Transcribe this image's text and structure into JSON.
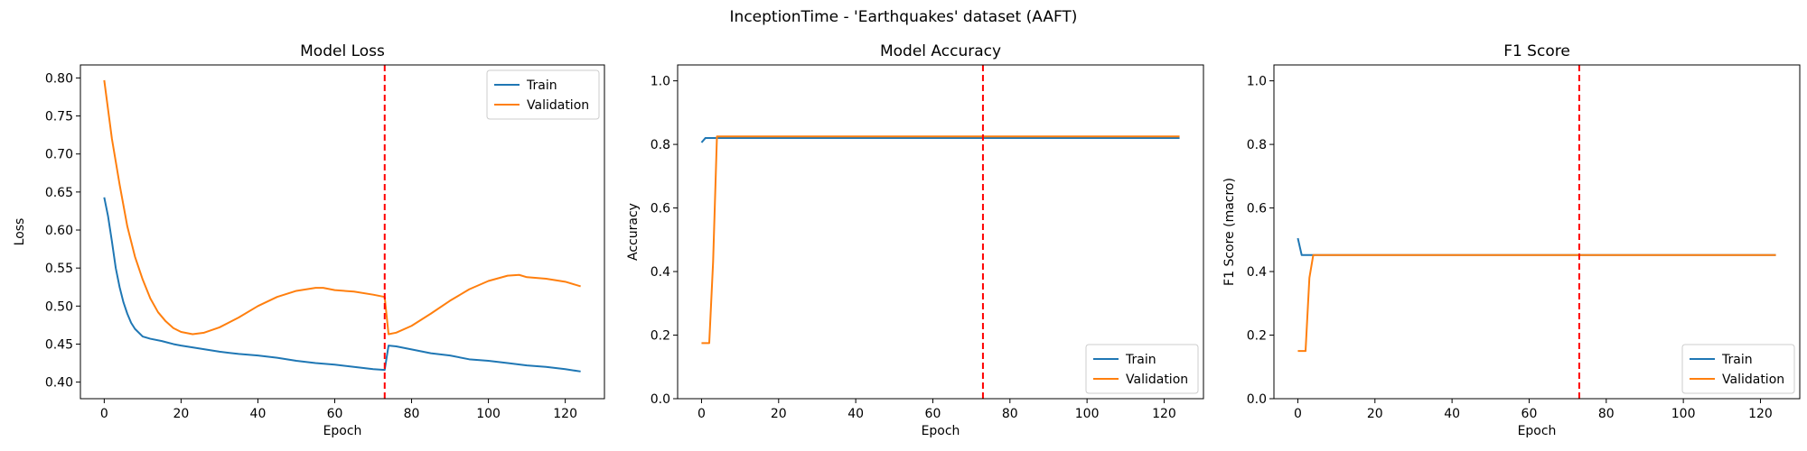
{
  "figure": {
    "suptitle": "InceptionTime - 'Earthquakes' dataset (AAFT)",
    "colors": {
      "train": "#1f77b4",
      "validation": "#ff7f0e",
      "marker": "#ff0000"
    }
  },
  "chart_data": [
    {
      "type": "line",
      "title": "Model Loss",
      "xlabel": "Epoch",
      "ylabel": "Loss",
      "xlim": [
        -6.2,
        130.2
      ],
      "ylim": [
        0.3782,
        0.8171
      ],
      "xticks": [
        0,
        20,
        40,
        60,
        80,
        100,
        120
      ],
      "yticks": [
        0.4,
        0.45,
        0.5,
        0.55,
        0.6,
        0.65,
        0.7,
        0.75,
        0.8
      ],
      "ytick_format": "2dp",
      "vline_x": 73,
      "legend": "top-right",
      "grid": false,
      "series": [
        {
          "name": "Train",
          "x": [
            0,
            1,
            2,
            3,
            4,
            5,
            6,
            7,
            8,
            10,
            12,
            15,
            18,
            20,
            25,
            30,
            35,
            40,
            45,
            50,
            55,
            60,
            65,
            70,
            73,
            74,
            76,
            80,
            85,
            90,
            95,
            100,
            105,
            110,
            115,
            120,
            124
          ],
          "y": [
            0.643,
            0.618,
            0.585,
            0.55,
            0.525,
            0.505,
            0.49,
            0.478,
            0.47,
            0.46,
            0.457,
            0.454,
            0.45,
            0.448,
            0.444,
            0.44,
            0.437,
            0.435,
            0.432,
            0.428,
            0.425,
            0.423,
            0.42,
            0.417,
            0.416,
            0.448,
            0.447,
            0.443,
            0.438,
            0.435,
            0.43,
            0.428,
            0.425,
            0.422,
            0.42,
            0.417,
            0.414
          ]
        },
        {
          "name": "Validation",
          "x": [
            0,
            2,
            4,
            6,
            8,
            10,
            12,
            14,
            16,
            18,
            20,
            23,
            26,
            30,
            35,
            40,
            45,
            50,
            55,
            57,
            60,
            65,
            70,
            73,
            74,
            76,
            80,
            85,
            90,
            95,
            100,
            105,
            108,
            110,
            115,
            120,
            124
          ],
          "y": [
            0.797,
            0.72,
            0.66,
            0.605,
            0.565,
            0.535,
            0.51,
            0.492,
            0.48,
            0.471,
            0.466,
            0.463,
            0.465,
            0.472,
            0.485,
            0.5,
            0.512,
            0.52,
            0.524,
            0.524,
            0.521,
            0.519,
            0.515,
            0.512,
            0.463,
            0.465,
            0.474,
            0.49,
            0.507,
            0.522,
            0.533,
            0.54,
            0.541,
            0.538,
            0.536,
            0.532,
            0.526
          ]
        }
      ]
    },
    {
      "type": "line",
      "title": "Model Accuracy",
      "xlabel": "Epoch",
      "ylabel": "Accuracy",
      "xlim": [
        -6.2,
        130.2
      ],
      "ylim": [
        0,
        1.05
      ],
      "xticks": [
        0,
        20,
        40,
        60,
        80,
        100,
        120
      ],
      "yticks": [
        0.0,
        0.2,
        0.4,
        0.6,
        0.8,
        1.0
      ],
      "ytick_format": "1dp",
      "vline_x": 73,
      "legend": "bottom-right",
      "grid": false,
      "series": [
        {
          "name": "Train",
          "x": [
            0,
            1,
            2,
            3,
            124
          ],
          "y": [
            0.806,
            0.82,
            0.82,
            0.82,
            0.82
          ]
        },
        {
          "name": "Validation",
          "x": [
            0,
            1,
            2,
            3,
            4,
            124
          ],
          "y": [
            0.175,
            0.175,
            0.175,
            0.43,
            0.825,
            0.825
          ]
        }
      ]
    },
    {
      "type": "line",
      "title": "F1 Score",
      "xlabel": "Epoch",
      "ylabel": "F1 Score (macro)",
      "xlim": [
        -6.2,
        130.2
      ],
      "ylim": [
        0,
        1.05
      ],
      "xticks": [
        0,
        20,
        40,
        60,
        80,
        100,
        120
      ],
      "yticks": [
        0.0,
        0.2,
        0.4,
        0.6,
        0.8,
        1.0
      ],
      "ytick_format": "1dp",
      "vline_x": 73,
      "legend": "bottom-right",
      "grid": false,
      "series": [
        {
          "name": "Train",
          "x": [
            0,
            1,
            2,
            3,
            124
          ],
          "y": [
            0.505,
            0.452,
            0.452,
            0.452,
            0.452
          ]
        },
        {
          "name": "Validation",
          "x": [
            0,
            1,
            2,
            3,
            4,
            124
          ],
          "y": [
            0.15,
            0.15,
            0.15,
            0.38,
            0.452,
            0.452
          ]
        }
      ]
    }
  ]
}
